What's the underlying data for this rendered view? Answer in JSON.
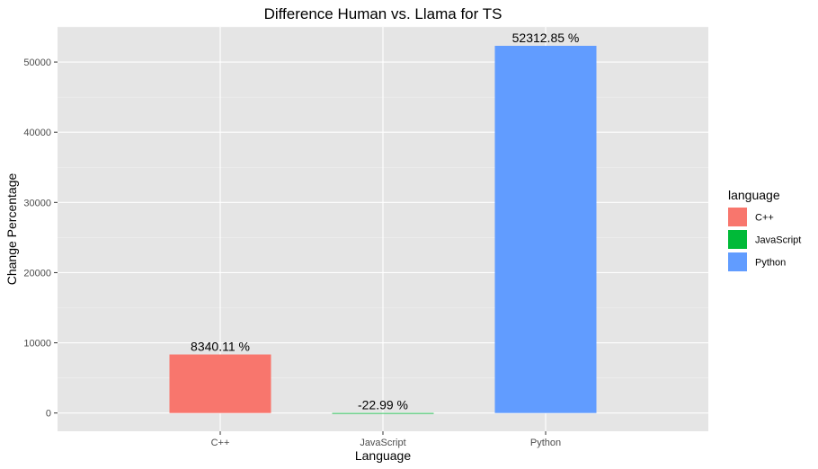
{
  "chart_data": {
    "type": "bar",
    "title": "Difference Human vs. Llama for TS",
    "xlabel": "Language",
    "ylabel": "Change Percentage",
    "categories": [
      "C++",
      "JavaScript",
      "Python"
    ],
    "values": [
      8340.11,
      -22.99,
      52312.85
    ],
    "data_labels": [
      "8340.11 %",
      "-22.99 %",
      "52312.85 %"
    ],
    "colors": [
      "#F8766D",
      "#00BA38",
      "#619CFF"
    ],
    "yticks": [
      0,
      10000,
      20000,
      30000,
      40000,
      50000
    ],
    "ylim": [
      -2600,
      55000
    ],
    "grid": true,
    "legend": {
      "title": "language",
      "placement": "right",
      "entries": [
        "C++",
        "JavaScript",
        "Python"
      ]
    }
  }
}
